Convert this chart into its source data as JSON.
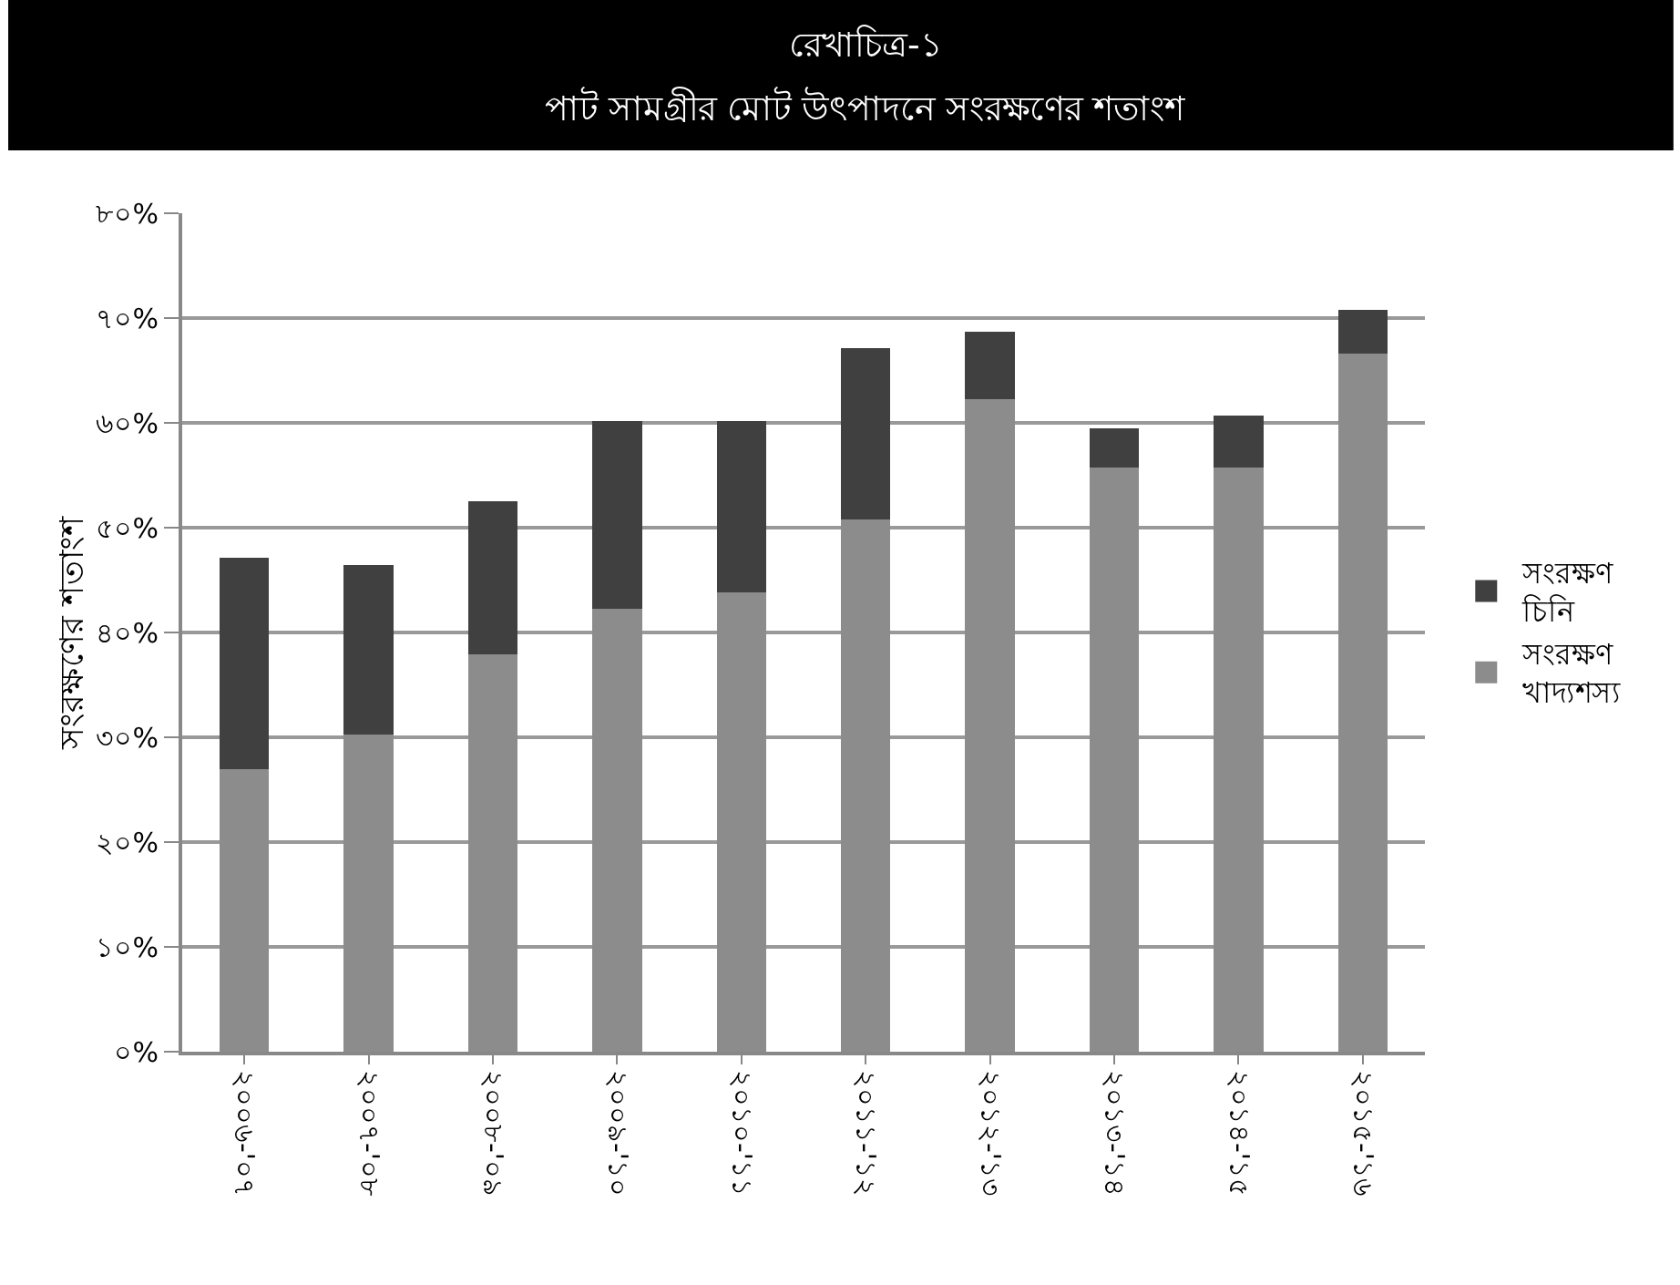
{
  "chart_data": {
    "type": "bar",
    "stacked": true,
    "title": "রেখাচিত্র-১",
    "subtitle": "পাট সামগ্রীর মোট উৎপাদনে সংরক্ষণের শতাংশ",
    "ylabel": "সংরক্ষণের শতাংশ",
    "categories": [
      "২০০৬-'০৭",
      "২০০৭-'০৮",
      "২০০৮-'০৯",
      "২০০৯-'১০",
      "২০১০-'১১",
      "২০১১-'১২",
      "২০১২-'১৩",
      "২০১৩-'১৪",
      "২০১৪-'১৫",
      "২০১৫-'১৬"
    ],
    "series": [
      {
        "name": "সংরক্ষণ খাদ্যশস্য",
        "color": "#8c8c8c",
        "values": [
          27.0,
          30.3,
          37.9,
          42.3,
          43.8,
          50.8,
          62.3,
          55.7,
          55.7,
          66.6
        ]
      },
      {
        "name": "সংরক্ষণ চিনি",
        "color": "#404040",
        "values": [
          20.1,
          16.1,
          14.6,
          17.9,
          16.4,
          16.3,
          6.4,
          3.8,
          5.0,
          4.2
        ]
      }
    ],
    "ylim": [
      0,
      80
    ],
    "yticks": [
      {
        "value": 0,
        "label": "০%"
      },
      {
        "value": 10,
        "label": "১০%"
      },
      {
        "value": 20,
        "label": "২০%"
      },
      {
        "value": 30,
        "label": "৩০%"
      },
      {
        "value": 40,
        "label": "৪০%"
      },
      {
        "value": 50,
        "label": "৫০%"
      },
      {
        "value": 60,
        "label": "৬০%"
      },
      {
        "value": 70,
        "label": "৭০%"
      },
      {
        "value": 80,
        "label": "৮০%"
      }
    ],
    "grid": "y",
    "legend": "right"
  }
}
